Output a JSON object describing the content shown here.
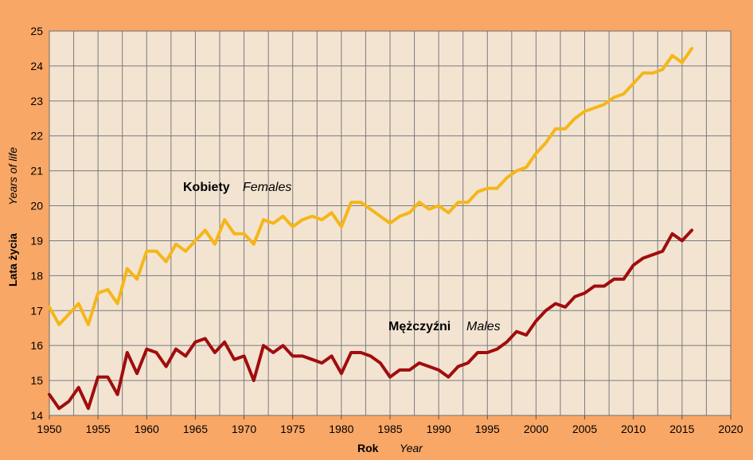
{
  "chart_data": {
    "type": "line",
    "xlim": [
      1950,
      2020
    ],
    "ylim": [
      14,
      25
    ],
    "x_ticks": [
      "1950",
      "1955",
      "1960",
      "1965",
      "1970",
      "1975",
      "1980",
      "1985",
      "1990",
      "1995",
      "2000",
      "2005",
      "2010",
      "2015",
      "2020"
    ],
    "y_ticks": [
      "14",
      "15",
      "16",
      "17",
      "18",
      "19",
      "20",
      "21",
      "22",
      "23",
      "24",
      "25"
    ],
    "xlabel": "Rok",
    "xlabel_en": "Year",
    "ylabel": "Lata życia",
    "ylabel_en": "Years of life",
    "grid": true,
    "plot_background": "#f3e4d2",
    "x": [
      1950,
      1951,
      1952,
      1953,
      1954,
      1955,
      1956,
      1957,
      1958,
      1959,
      1960,
      1961,
      1962,
      1963,
      1964,
      1965,
      1966,
      1967,
      1968,
      1969,
      1970,
      1971,
      1972,
      1973,
      1974,
      1975,
      1976,
      1977,
      1978,
      1979,
      1980,
      1981,
      1982,
      1983,
      1984,
      1985,
      1986,
      1987,
      1988,
      1989,
      1990,
      1991,
      1992,
      1993,
      1994,
      1995,
      1996,
      1997,
      1998,
      1999,
      2000,
      2001,
      2002,
      2003,
      2004,
      2005,
      2006,
      2007,
      2008,
      2009,
      2010,
      2011,
      2012,
      2013,
      2014,
      2015,
      2016
    ],
    "series": [
      {
        "name": "Kobiety",
        "name_en": "Females",
        "color": "#f5b619",
        "values": [
          17.1,
          16.6,
          16.9,
          17.2,
          16.6,
          17.5,
          17.6,
          17.2,
          18.2,
          17.9,
          18.7,
          18.7,
          18.4,
          18.9,
          18.7,
          19.0,
          19.3,
          18.9,
          19.6,
          19.2,
          19.2,
          18.9,
          19.6,
          19.5,
          19.7,
          19.4,
          19.6,
          19.7,
          19.6,
          19.8,
          19.4,
          20.1,
          20.1,
          19.9,
          19.7,
          19.5,
          19.7,
          19.8,
          20.1,
          19.9,
          20.0,
          19.8,
          20.1,
          20.1,
          20.4,
          20.5,
          20.5,
          20.8,
          21.0,
          21.1,
          21.5,
          21.8,
          22.2,
          22.2,
          22.5,
          22.7,
          22.8,
          22.9,
          23.1,
          23.2,
          23.5,
          23.8,
          23.8,
          23.9,
          24.3,
          24.1,
          24.5
        ]
      },
      {
        "name": "Mężczyźni",
        "name_en": "Males",
        "color": "#a00d0d",
        "values": [
          14.6,
          14.2,
          14.4,
          14.8,
          14.2,
          15.1,
          15.1,
          14.6,
          15.8,
          15.2,
          15.9,
          15.8,
          15.4,
          15.9,
          15.7,
          16.1,
          16.2,
          15.8,
          16.1,
          15.6,
          15.7,
          15.0,
          16.0,
          15.8,
          16.0,
          15.7,
          15.7,
          15.6,
          15.5,
          15.7,
          15.2,
          15.8,
          15.8,
          15.7,
          15.5,
          15.1,
          15.3,
          15.3,
          15.5,
          15.4,
          15.3,
          15.1,
          15.4,
          15.5,
          15.8,
          15.8,
          15.9,
          16.1,
          16.4,
          16.3,
          16.7,
          17.0,
          17.2,
          17.1,
          17.4,
          17.5,
          17.7,
          17.7,
          17.9,
          17.9,
          18.3,
          18.5,
          18.6,
          18.7,
          19.2,
          19.0,
          19.3
        ]
      }
    ]
  }
}
